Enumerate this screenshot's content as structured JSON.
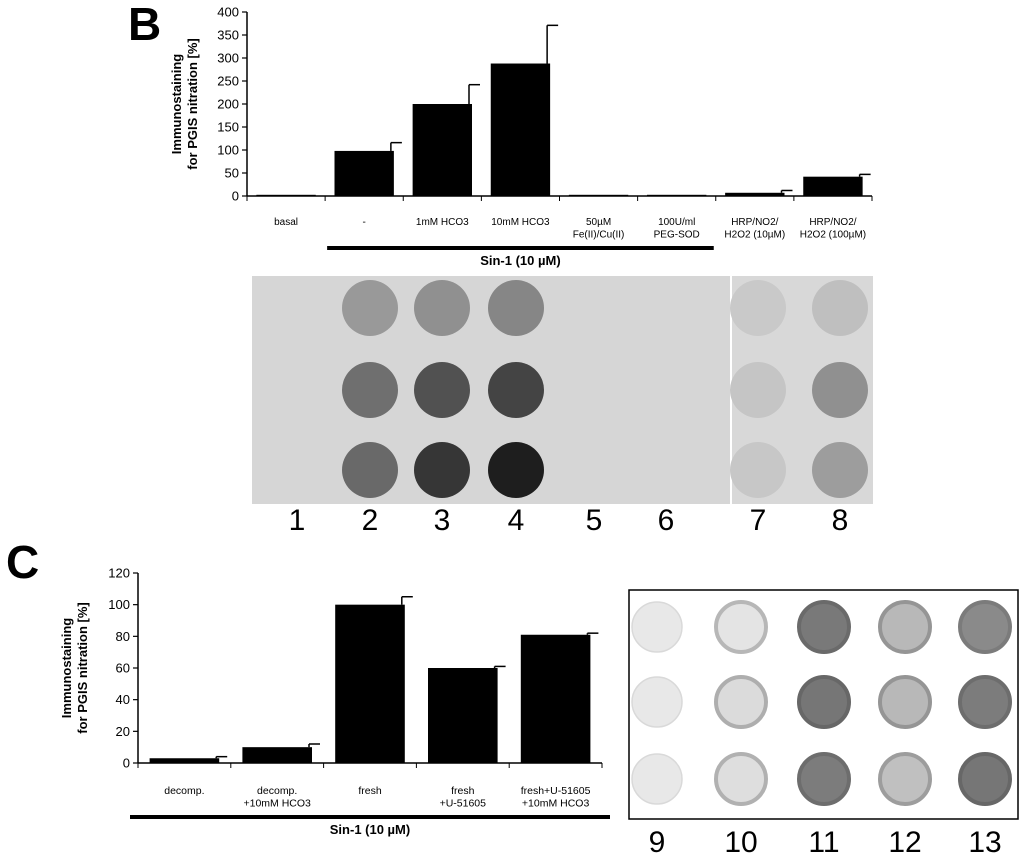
{
  "panels": {
    "b_letter": "B",
    "c_letter": "C"
  },
  "chart_data": [
    {
      "type": "bar",
      "panel": "B",
      "ylabel_line1": "Immunostaining",
      "ylabel_line2": "for PGIS nitration [%]",
      "ylim": [
        0,
        400
      ],
      "yticks": [
        0,
        50,
        100,
        150,
        200,
        250,
        300,
        350,
        400
      ],
      "categories": [
        [
          "basal"
        ],
        [
          "-"
        ],
        [
          "1mM HCO3"
        ],
        [
          "10mM HCO3"
        ],
        [
          "50µM",
          "Fe(II)/Cu(II)"
        ],
        [
          "100U/ml",
          "PEG-SOD"
        ],
        [
          "HRP/NO2/",
          "H2O2 (10µM)"
        ],
        [
          "HRP/NO2/",
          "H2O2 (100µM)"
        ]
      ],
      "values": [
        0,
        98,
        200,
        288,
        0,
        0,
        7,
        42
      ],
      "errors": [
        0,
        18,
        42,
        83,
        0,
        0,
        5,
        5
      ],
      "bracket": {
        "label": "Sin-1 (10 µM)",
        "from": 1,
        "to": 5
      },
      "color": "#000000"
    },
    {
      "type": "bar",
      "panel": "C",
      "ylabel_line1": "Immunostaining",
      "ylabel_line2": "for PGIS nitration [%]",
      "ylim": [
        0,
        120
      ],
      "yticks": [
        0,
        20,
        40,
        60,
        80,
        100,
        120
      ],
      "categories": [
        [
          "decomp."
        ],
        [
          "decomp.",
          "+10mM HCO3"
        ],
        [
          "fresh"
        ],
        [
          "fresh",
          "+U-51605"
        ],
        [
          "fresh+U-51605",
          "+10mM HCO3"
        ]
      ],
      "values": [
        3,
        10,
        100,
        60,
        81
      ],
      "errors": [
        1,
        2,
        5,
        1,
        1
      ],
      "bracket": {
        "label": "Sin-1 (10 µM)",
        "from": 0,
        "to": 4
      },
      "color": "#000000"
    }
  ],
  "blots": {
    "b_lanes": [
      "1",
      "2",
      "3",
      "4",
      "5",
      "6",
      "7",
      "8"
    ],
    "b_lane_intensity": [
      [
        0.0,
        0.3,
        0.35,
        0.4,
        0.0,
        0.0,
        0.05,
        0.1
      ],
      [
        0.0,
        0.52,
        0.68,
        0.75,
        0.0,
        0.0,
        0.07,
        0.35
      ],
      [
        0.0,
        0.55,
        0.82,
        0.95,
        0.0,
        0.0,
        0.06,
        0.28
      ]
    ],
    "c_lanes": [
      "9",
      "10",
      "11",
      "12",
      "13"
    ],
    "c_lane_intensity": [
      [
        0.05,
        0.25,
        0.7,
        0.45,
        0.6
      ],
      [
        0.05,
        0.3,
        0.72,
        0.45,
        0.68
      ],
      [
        0.05,
        0.28,
        0.68,
        0.4,
        0.72
      ]
    ]
  }
}
